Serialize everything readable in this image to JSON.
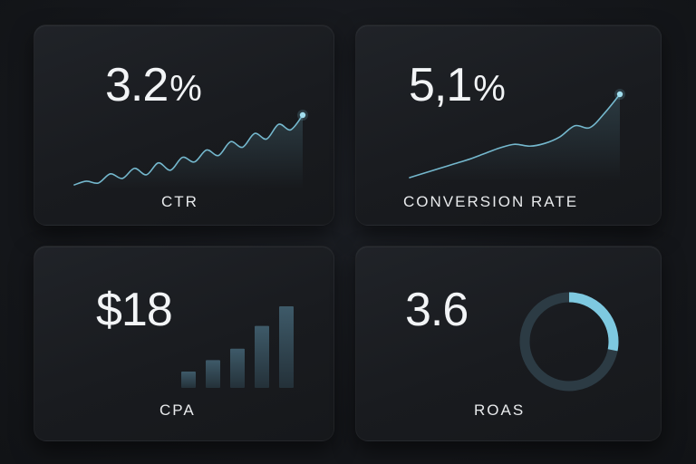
{
  "metrics": {
    "ctr": {
      "value_number": "3.2",
      "value_unit": "%",
      "label": "CTR",
      "trend": [
        0,
        0.2,
        0.1,
        0.6,
        0.35,
        0.9,
        0.55,
        1.2,
        0.8,
        1.5,
        1.25,
        1.9,
        1.6,
        2.35,
        2.05,
        2.8,
        2.5,
        3.3,
        3.0,
        3.8
      ]
    },
    "conversion_rate": {
      "value_number": "5,1",
      "value_unit": "%",
      "label": "CONVERSION RATE",
      "trend": [
        0,
        0.5,
        1.0,
        1.5,
        2.0,
        2.6,
        3.2,
        3.6,
        3.4,
        3.7,
        4.4,
        5.6,
        5.4,
        7.0,
        9.0
      ]
    },
    "cpa": {
      "value_number": "$18",
      "label": "CPA",
      "bars": [
        1,
        1.7,
        2.4,
        3.8,
        5.0
      ]
    },
    "roas": {
      "value_number": "3.6",
      "label": "ROAS",
      "ring_fraction": 0.28
    }
  },
  "colors": {
    "accent": "#7ec9e0",
    "track": "#2c3b44",
    "bar": "#2f4450",
    "text": "#f2f4f6"
  }
}
